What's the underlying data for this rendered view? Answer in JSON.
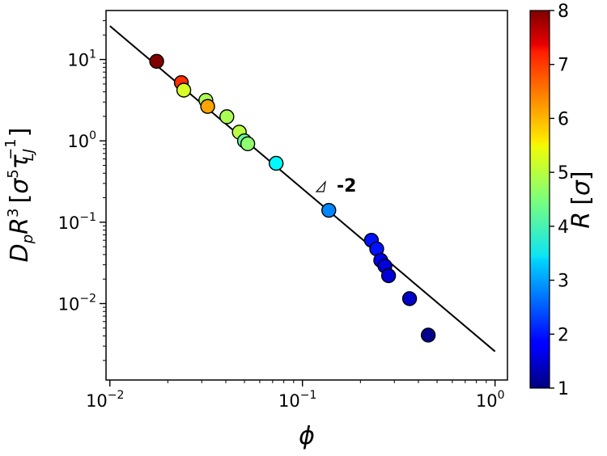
{
  "chart_data": {
    "type": "scatter",
    "xscale": "log",
    "yscale": "log",
    "xlim": [
      0.00955,
      1.16
    ],
    "ylim": [
      0.00115,
      40
    ],
    "x_ticks": [
      {
        "value": 0.01,
        "base": "10",
        "exp": "−2"
      },
      {
        "value": 0.1,
        "base": "10",
        "exp": "−1"
      },
      {
        "value": 1,
        "base": "10",
        "exp": "0"
      }
    ],
    "y_ticks": [
      {
        "value": 0.01,
        "base": "10",
        "exp": "−2"
      },
      {
        "value": 0.1,
        "base": "10",
        "exp": "−1"
      },
      {
        "value": 1,
        "base": "10",
        "exp": "0"
      },
      {
        "value": 10,
        "base": "10",
        "exp": "1"
      }
    ],
    "xlabel": "ϕ",
    "ylabel": {
      "main": "D",
      "sub_p": "p",
      "R": "R",
      "sup3": "3",
      "bracket_open": "[",
      "sigma": "σ",
      "sup5": "5",
      "tau": "τ",
      "sub_LJ": "LJ",
      "sup_neg1": "−1",
      "bracket_close": "]"
    },
    "points": [
      {
        "x": 0.0175,
        "y": 9.5,
        "R": 8.0
      },
      {
        "x": 0.0235,
        "y": 5.2,
        "R": 6.8
      },
      {
        "x": 0.0242,
        "y": 4.2,
        "R": 5.1
      },
      {
        "x": 0.0315,
        "y": 3.15,
        "R": 4.8
      },
      {
        "x": 0.0322,
        "y": 2.65,
        "R": 6.0
      },
      {
        "x": 0.0405,
        "y": 1.98,
        "R": 4.8
      },
      {
        "x": 0.047,
        "y": 1.28,
        "R": 4.9
      },
      {
        "x": 0.05,
        "y": 1.0,
        "R": 4.3
      },
      {
        "x": 0.052,
        "y": 0.92,
        "R": 4.6
      },
      {
        "x": 0.073,
        "y": 0.53,
        "R": 3.6
      },
      {
        "x": 0.137,
        "y": 0.14,
        "R": 2.8
      },
      {
        "x": 0.228,
        "y": 0.06,
        "R": 2.0
      },
      {
        "x": 0.243,
        "y": 0.047,
        "R": 2.0
      },
      {
        "x": 0.255,
        "y": 0.034,
        "R": 1.8
      },
      {
        "x": 0.268,
        "y": 0.029,
        "R": 1.6
      },
      {
        "x": 0.28,
        "y": 0.022,
        "R": 1.6
      },
      {
        "x": 0.36,
        "y": 0.0115,
        "R": 1.5
      },
      {
        "x": 0.45,
        "y": 0.0041,
        "R": 1.1
      }
    ],
    "fit_line": {
      "x": [
        0.01,
        1.0
      ],
      "y": [
        25.8,
        0.00258
      ],
      "color": "#000000"
    },
    "annotation": {
      "text": "-2",
      "x": 0.12,
      "y": 0.53
    },
    "colorbar": {
      "label_main": "R",
      "label_bracket_open": "[",
      "label_sigma": "σ",
      "label_bracket_close": "]",
      "range": [
        1,
        8
      ],
      "ticks": [
        "1",
        "2",
        "3",
        "4",
        "5",
        "6",
        "7",
        "8"
      ],
      "colormap": "jet"
    },
    "grid": false
  }
}
